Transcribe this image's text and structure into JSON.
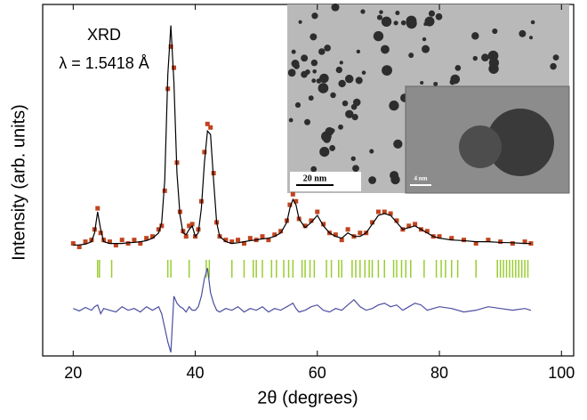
{
  "chart_data": {
    "type": "line",
    "annotations": [
      "XRD",
      "λ = 1.5418 Å"
    ],
    "xlabel": "2θ (degrees)",
    "ylabel": "Intensity (arb. units)",
    "xlim": [
      15,
      102
    ],
    "xticks": [
      20,
      40,
      60,
      80,
      100
    ],
    "ylim": [
      0,
      100
    ],
    "x": [
      20,
      21,
      22,
      23,
      23.5,
      24,
      24.5,
      25,
      26,
      27,
      28,
      29,
      30,
      31,
      32,
      33,
      34,
      34.5,
      35,
      35.5,
      36,
      36.5,
      37,
      37.5,
      38,
      38.5,
      39,
      39.5,
      40,
      40.5,
      41,
      41.5,
      42,
      42.5,
      43,
      43.5,
      44,
      45,
      46,
      47,
      48,
      49,
      50,
      51,
      52,
      53,
      54,
      55,
      55.5,
      56,
      56.5,
      57,
      58,
      59,
      60,
      61,
      62,
      63,
      64,
      65,
      66,
      67,
      68,
      69,
      70,
      71,
      72,
      73,
      74,
      75,
      76,
      77,
      78,
      79,
      80,
      82,
      84,
      86,
      88,
      90,
      92,
      94,
      95
    ],
    "series": [
      {
        "color": "#c0441f",
        "marker": "square",
        "values": [
          32,
          31,
          32.5,
          33,
          36,
          42,
          35,
          33,
          32.5,
          31.5,
          33,
          32,
          33,
          32,
          33.5,
          34,
          36,
          37,
          47,
          76,
          88,
          82,
          55,
          41,
          35.5,
          34,
          37,
          37.5,
          34,
          36,
          44,
          58,
          66,
          65,
          52,
          38,
          34,
          33,
          32.5,
          33,
          32,
          33.5,
          33,
          34,
          33,
          34.5,
          35.5,
          38.5,
          43,
          46,
          44,
          39,
          37,
          38.5,
          41,
          37.5,
          35,
          34.5,
          33,
          36,
          34,
          35,
          35,
          38,
          41,
          41,
          40.5,
          38.5,
          36,
          37,
          37.5,
          36,
          35.5,
          34,
          34,
          33.5,
          33,
          32,
          33,
          32.5,
          32,
          32.5,
          32
        ]
      },
      {
        "color": "#000000",
        "values": [
          31.5,
          31.6,
          31.8,
          32.5,
          35,
          41,
          36,
          32.5,
          32,
          32,
          32,
          32.2,
          32.3,
          32.5,
          32.8,
          33.5,
          35,
          38,
          50,
          80,
          94,
          78,
          52,
          40,
          35,
          34.5,
          36,
          37,
          34,
          35,
          42,
          55,
          64,
          63,
          50,
          38,
          34,
          32.5,
          32,
          32.2,
          32.5,
          32.8,
          33,
          33.3,
          33.5,
          34,
          35,
          38,
          42,
          44.5,
          43,
          39,
          36.5,
          38,
          40,
          37,
          35,
          34,
          33.5,
          35,
          34,
          34,
          35,
          37.5,
          40,
          40.5,
          40,
          38,
          36,
          36.5,
          37,
          36,
          35,
          34,
          33.5,
          33,
          32.8,
          32.5,
          32.5,
          32.3,
          32.2,
          32,
          32
        ]
      },
      {
        "color": "#4b4ea0",
        "values": [
          13.5,
          12.8,
          13.8,
          13,
          14,
          14.5,
          12,
          13.5,
          13,
          12.5,
          14,
          13,
          13.5,
          12.5,
          14,
          13,
          14,
          12,
          8,
          4,
          1,
          17,
          15,
          14,
          13.5,
          12.5,
          14,
          13,
          13,
          14,
          17,
          22,
          25,
          18,
          15,
          13,
          12.5,
          13.5,
          13,
          14,
          12.5,
          13.5,
          13,
          14,
          12.5,
          13.5,
          13,
          14,
          14.5,
          15,
          13.5,
          12.5,
          13,
          14,
          14.5,
          13,
          12.5,
          13.5,
          13,
          14.5,
          16,
          14,
          13,
          13.5,
          14.5,
          15,
          14,
          14.5,
          13,
          14,
          15,
          14.5,
          13,
          13.5,
          14,
          13.5,
          12.5,
          13,
          14,
          13.5,
          13,
          13.5,
          13
        ]
      }
    ],
    "bragg_color": "#9acd32",
    "bragg_positions": [
      24,
      24.3,
      26.3,
      35.5,
      36,
      39,
      41.8,
      42.3,
      46,
      48,
      49.5,
      50,
      51,
      52.5,
      53.3,
      54.5,
      55.3,
      56,
      57.5,
      58,
      58.8,
      59.5,
      61.5,
      62.3,
      63.5,
      64,
      65.7,
      66.3,
      67,
      67.8,
      68.5,
      69,
      70,
      71,
      72.5,
      73,
      73.8,
      74.5,
      75.3,
      77.5,
      79.5,
      80.3,
      81,
      82,
      83,
      86,
      89.5,
      90,
      90.5,
      91,
      91.5,
      92,
      92.5,
      93,
      93.5,
      94,
      94.5
    ],
    "inset_labels": [
      "20 nm",
      "4 nm"
    ]
  }
}
